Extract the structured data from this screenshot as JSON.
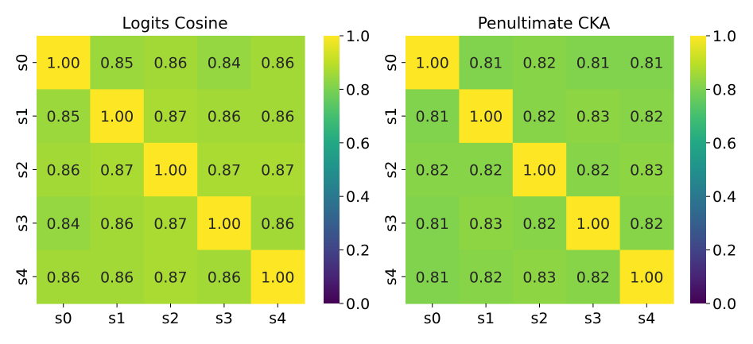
{
  "chart_data": [
    {
      "type": "heatmap",
      "title": "Logits Cosine",
      "x_categories": [
        "s0",
        "s1",
        "s2",
        "s3",
        "s4"
      ],
      "y_categories": [
        "s0",
        "s1",
        "s2",
        "s3",
        "s4"
      ],
      "values": [
        [
          1.0,
          0.85,
          0.86,
          0.84,
          0.86
        ],
        [
          0.85,
          1.0,
          0.87,
          0.86,
          0.86
        ],
        [
          0.86,
          0.87,
          1.0,
          0.87,
          0.87
        ],
        [
          0.84,
          0.86,
          0.87,
          1.0,
          0.86
        ],
        [
          0.86,
          0.86,
          0.87,
          0.86,
          1.0
        ]
      ],
      "colormap": "viridis",
      "vmin": 0.0,
      "vmax": 1.0,
      "colorbar_ticks": [
        "0.0",
        "0.2",
        "0.4",
        "0.6",
        "0.8",
        "1.0"
      ],
      "value_format": "2 decimals",
      "grid": false
    },
    {
      "type": "heatmap",
      "title": "Penultimate CKA",
      "x_categories": [
        "s0",
        "s1",
        "s2",
        "s3",
        "s4"
      ],
      "y_categories": [
        "s0",
        "s1",
        "s2",
        "s3",
        "s4"
      ],
      "values": [
        [
          1.0,
          0.81,
          0.82,
          0.81,
          0.81
        ],
        [
          0.81,
          1.0,
          0.82,
          0.83,
          0.82
        ],
        [
          0.82,
          0.82,
          1.0,
          0.82,
          0.83
        ],
        [
          0.81,
          0.83,
          0.82,
          1.0,
          0.82
        ],
        [
          0.81,
          0.82,
          0.83,
          0.82,
          1.0
        ]
      ],
      "colormap": "viridis",
      "vmin": 0.0,
      "vmax": 1.0,
      "colorbar_ticks": [
        "0.0",
        "0.2",
        "0.4",
        "0.6",
        "0.8",
        "1.0"
      ],
      "value_format": "2 decimals",
      "grid": false
    }
  ]
}
